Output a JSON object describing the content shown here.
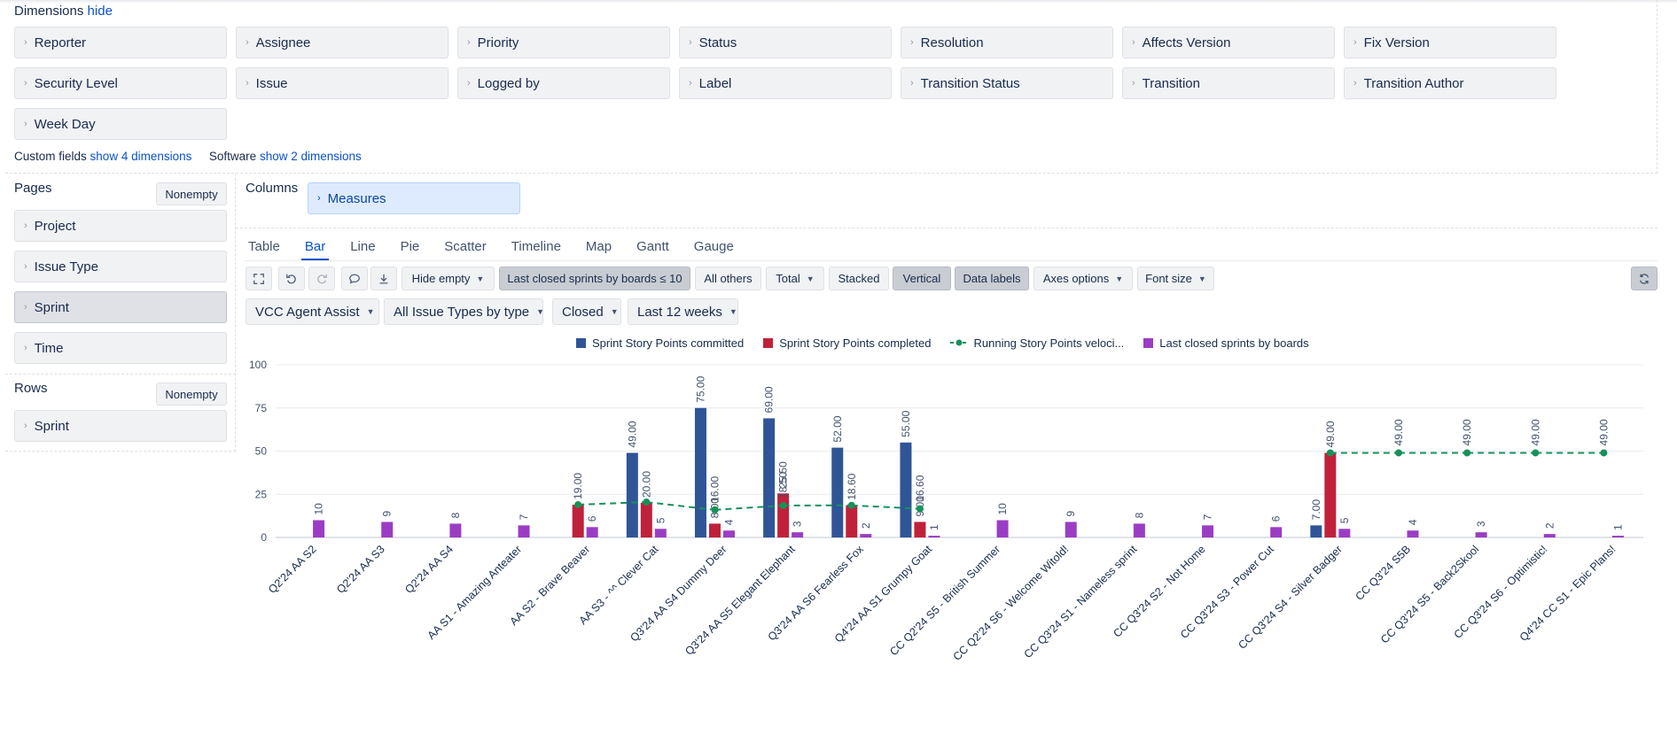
{
  "dimensions": {
    "title": "Dimensions",
    "hide_label": "hide",
    "items": [
      "Reporter",
      "Assignee",
      "Priority",
      "Status",
      "Resolution",
      "Affects Version",
      "Fix Version",
      "Security Level",
      "Issue",
      "Logged by",
      "Label",
      "Transition Status",
      "Transition",
      "Transition Author",
      "Week Day"
    ],
    "custom_fields_label": "Custom fields",
    "custom_fields_link": "show 4 dimensions",
    "software_label": "Software",
    "software_link": "show 2 dimensions"
  },
  "pages": {
    "title": "Pages",
    "nonempty_label": "Nonempty",
    "items": [
      "Project",
      "Issue Type",
      "Sprint",
      "Time"
    ],
    "selected_item": "Sprint"
  },
  "rows": {
    "title": "Rows",
    "nonempty_label": "Nonempty",
    "items": [
      "Sprint"
    ]
  },
  "columns": {
    "title": "Columns",
    "items": [
      "Measures"
    ]
  },
  "tabs": {
    "items": [
      "Table",
      "Bar",
      "Line",
      "Pie",
      "Scatter",
      "Timeline",
      "Map",
      "Gantt",
      "Gauge"
    ],
    "active": "Bar"
  },
  "toolbar": {
    "hide_empty": "Hide empty",
    "last_closed_sprints": "Last closed sprints by boards ≤ 10",
    "all_others": "All others",
    "total": "Total",
    "stacked": "Stacked",
    "vertical": "Vertical",
    "data_labels": "Data labels",
    "axes_options": "Axes options",
    "font_size": "Font size",
    "icons": [
      "fullscreen-icon",
      "undo-icon",
      "redo-icon",
      "comment-icon",
      "download-icon",
      "refresh-icon"
    ]
  },
  "filters": {
    "project": "VCC Agent Assist",
    "issue_types": "All Issue Types by type",
    "status": "Closed",
    "period": "Last 12 weeks"
  },
  "colors": {
    "committed": "#2f5597",
    "completed": "#c0213a",
    "velocity": "#17915b",
    "last_closed": "#9b3dc4"
  },
  "chart_data": {
    "type": "bar",
    "ylim": [
      0,
      100
    ],
    "yticks": [
      "0",
      "25",
      "50",
      "75",
      "100"
    ],
    "categories": [
      "Q2'24 AA S2",
      "Q2'24 AA S3",
      "Q2'24 AA S4",
      "AA S1 - Amazing Anteater",
      "AA S2 - Brave Beaver",
      "AA S3 - ^^ Clever Cat",
      "Q3'24 AA S4 Dummy Deer",
      "Q3'24 AA S5 Elegant Elephant",
      "Q3'24 AA S6 Fearless Fox",
      "Q4'24 AA S1 Grumpy Goat",
      "CC Q2'24 S5 - British Summer",
      "CC Q2'24 S6 - Welcome Witold!",
      "CC Q3'24 S1 - Nameless sprint",
      "CC Q3'24 S2 - Not Home",
      "CC Q3'24 S3 - Power Cut",
      "CC Q3'24 S4 - Silver Badger",
      "CC Q3'24 S5B",
      "CC Q3'24 S5 - Back2Skool",
      "CC Q3'24 S6 - Optimistic!",
      "Q4'24 CC S1 - Epic Plans!"
    ],
    "series": [
      {
        "name": "Sprint Story Points committed",
        "values": [
          null,
          null,
          null,
          null,
          null,
          49,
          75,
          69,
          52,
          55,
          null,
          null,
          null,
          null,
          null,
          7,
          null,
          null,
          null,
          null
        ],
        "labels": [
          "",
          "",
          "",
          "",
          "",
          "49.00",
          "75.00",
          "69.00",
          "52.00",
          "55.00",
          "",
          "",
          "",
          "",
          "",
          "7.00",
          "",
          "",
          "",
          ""
        ]
      },
      {
        "name": "Sprint Story Points completed",
        "values": [
          null,
          null,
          null,
          null,
          19,
          20,
          8,
          25.5,
          18.6,
          9,
          null,
          null,
          null,
          null,
          null,
          49,
          null,
          null,
          null,
          null
        ],
        "labels": [
          "",
          "",
          "",
          "",
          "19.00",
          "20.00",
          "8.00",
          "25.50",
          "18.60",
          "9.00",
          "",
          "",
          "",
          "",
          "",
          "49.00",
          "",
          "",
          "",
          ""
        ]
      },
      {
        "name": "Running Story Points veloci...",
        "values": [
          null,
          null,
          null,
          null,
          19,
          20.5,
          16,
          18.5,
          18.6,
          16.6,
          null,
          null,
          null,
          null,
          null,
          49,
          49,
          49,
          49,
          49
        ],
        "labels": [
          "",
          "",
          "",
          "",
          "",
          "",
          "16.00",
          "18.50",
          "",
          "16.60",
          "",
          "",
          "",
          "",
          "",
          "",
          "49.00",
          "49.00",
          "49.00",
          "49.00"
        ]
      },
      {
        "name": "Last closed sprints by boards",
        "values": [
          10,
          9,
          8,
          7,
          6,
          5,
          4,
          3,
          2,
          1,
          10,
          9,
          8,
          7,
          6,
          5,
          4,
          3,
          2,
          1
        ],
        "labels": [
          "10",
          "9",
          "8",
          "7",
          "6",
          "5",
          "4",
          "3",
          "2",
          "1",
          "10",
          "9",
          "8",
          "7",
          "6",
          "5",
          "4",
          "3",
          "2",
          "1"
        ]
      }
    ]
  }
}
